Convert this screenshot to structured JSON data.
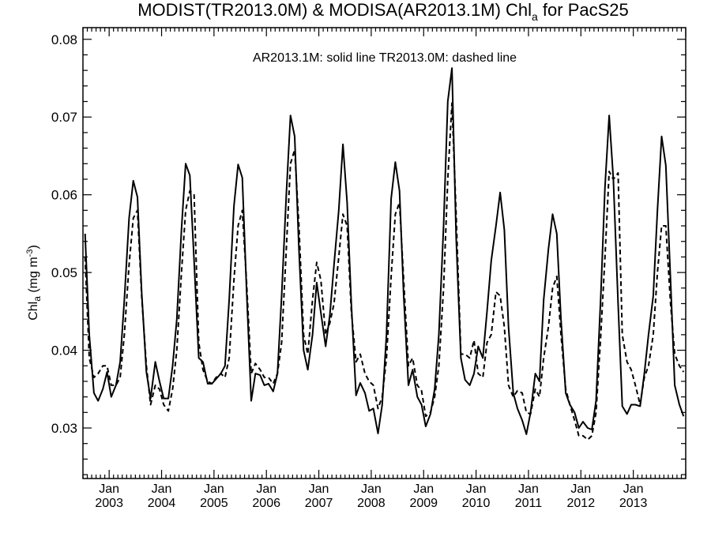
{
  "chart_data": {
    "type": "line",
    "title": {
      "prefix": "MODIST(TR2013.0M) & MODISA(AR2013.1M)  Chl",
      "subscript": "a",
      "suffix": " for PacS25"
    },
    "ylabel": {
      "prefix": "Chl",
      "subscript": "a",
      "units": " (mg m",
      "superscript": "-3",
      "close": ")"
    },
    "annotation": "AR2013.1M: solid line   TR2013.0M: dashed line",
    "xlim": [
      2002.5,
      2014.0
    ],
    "ylim": [
      0.0235,
      0.0815
    ],
    "y_ticks": [
      0.03,
      0.04,
      0.05,
      0.06,
      0.07,
      0.08
    ],
    "y_tick_labels": [
      "0.03",
      "0.04",
      "0.05",
      "0.06",
      "0.07",
      "0.08"
    ],
    "x_ticks": [
      2003,
      2004,
      2005,
      2006,
      2007,
      2008,
      2009,
      2010,
      2011,
      2012,
      2013
    ],
    "x_tick_month": "Jan",
    "x_tick_years": [
      "2003",
      "2004",
      "2005",
      "2006",
      "2007",
      "2008",
      "2009",
      "2010",
      "2011",
      "2012",
      "2013"
    ],
    "grid": false,
    "series": [
      {
        "style": "solid",
        "x": [
          2002.54,
          2002.62,
          2002.71,
          2002.79,
          2002.88,
          2002.96,
          2003.04,
          2003.13,
          2003.21,
          2003.29,
          2003.38,
          2003.46,
          2003.54,
          2003.62,
          2003.71,
          2003.79,
          2003.88,
          2003.96,
          2004.04,
          2004.13,
          2004.21,
          2004.29,
          2004.38,
          2004.46,
          2004.54,
          2004.62,
          2004.71,
          2004.79,
          2004.88,
          2004.96,
          2005.04,
          2005.13,
          2005.21,
          2005.29,
          2005.38,
          2005.46,
          2005.54,
          2005.62,
          2005.71,
          2005.79,
          2005.88,
          2005.96,
          2006.04,
          2006.13,
          2006.21,
          2006.29,
          2006.38,
          2006.46,
          2006.54,
          2006.62,
          2006.71,
          2006.79,
          2006.88,
          2006.96,
          2007.04,
          2007.13,
          2007.21,
          2007.29,
          2007.38,
          2007.46,
          2007.54,
          2007.62,
          2007.71,
          2007.79,
          2007.88,
          2007.96,
          2008.04,
          2008.13,
          2008.21,
          2008.29,
          2008.38,
          2008.46,
          2008.54,
          2008.62,
          2008.71,
          2008.79,
          2008.88,
          2008.96,
          2009.04,
          2009.13,
          2009.21,
          2009.29,
          2009.38,
          2009.46,
          2009.54,
          2009.62,
          2009.71,
          2009.79,
          2009.88,
          2009.96,
          2010.04,
          2010.13,
          2010.21,
          2010.29,
          2010.38,
          2010.46,
          2010.54,
          2010.62,
          2010.71,
          2010.79,
          2010.88,
          2010.96,
          2011.04,
          2011.13,
          2011.21,
          2011.29,
          2011.38,
          2011.46,
          2011.54,
          2011.62,
          2011.71,
          2011.79,
          2011.88,
          2011.96,
          2012.04,
          2012.13,
          2012.21,
          2012.29,
          2012.38,
          2012.46,
          2012.54,
          2012.62,
          2012.71,
          2012.79,
          2012.88,
          2012.96,
          2013.04,
          2013.13,
          2013.21,
          2013.29,
          2013.38,
          2013.46,
          2013.54,
          2013.62,
          2013.71,
          2013.79,
          2013.88,
          2013.96
        ],
        "y": [
          0.055,
          0.042,
          0.0345,
          0.0335,
          0.035,
          0.0372,
          0.034,
          0.0355,
          0.0385,
          0.0465,
          0.057,
          0.0618,
          0.0597,
          0.0475,
          0.0372,
          0.0338,
          0.0385,
          0.036,
          0.0338,
          0.0338,
          0.038,
          0.044,
          0.0555,
          0.064,
          0.0625,
          0.0515,
          0.039,
          0.0385,
          0.0357,
          0.0357,
          0.0363,
          0.037,
          0.038,
          0.0465,
          0.0585,
          0.0639,
          0.0622,
          0.048,
          0.0335,
          0.037,
          0.0368,
          0.0355,
          0.0357,
          0.0347,
          0.037,
          0.047,
          0.06,
          0.0702,
          0.0675,
          0.053,
          0.04,
          0.0375,
          0.042,
          0.0487,
          0.0448,
          0.0405,
          0.0445,
          0.051,
          0.058,
          0.0665,
          0.059,
          0.046,
          0.0342,
          0.0358,
          0.0345,
          0.0322,
          0.0325,
          0.0293,
          0.033,
          0.042,
          0.0595,
          0.0642,
          0.0605,
          0.047,
          0.0355,
          0.0375,
          0.034,
          0.033,
          0.0302,
          0.0318,
          0.035,
          0.042,
          0.056,
          0.072,
          0.0763,
          0.0545,
          0.039,
          0.0362,
          0.0355,
          0.037,
          0.0405,
          0.039,
          0.045,
          0.0515,
          0.056,
          0.0603,
          0.0555,
          0.043,
          0.0345,
          0.0325,
          0.031,
          0.0292,
          0.032,
          0.037,
          0.036,
          0.0465,
          0.053,
          0.0575,
          0.055,
          0.044,
          0.0345,
          0.033,
          0.032,
          0.03,
          0.0308,
          0.03,
          0.0298,
          0.0335,
          0.047,
          0.061,
          0.0702,
          0.062,
          0.046,
          0.0328,
          0.0318,
          0.033,
          0.033,
          0.0328,
          0.037,
          0.042,
          0.047,
          0.058,
          0.0675,
          0.0638,
          0.049,
          0.0355,
          0.033,
          0.0315
        ]
      },
      {
        "style": "dashed",
        "x": [
          2002.54,
          2002.62,
          2002.71,
          2002.79,
          2002.88,
          2002.96,
          2003.04,
          2003.13,
          2003.21,
          2003.29,
          2003.38,
          2003.46,
          2003.54,
          2003.62,
          2003.71,
          2003.79,
          2003.88,
          2003.96,
          2004.04,
          2004.13,
          2004.21,
          2004.29,
          2004.38,
          2004.46,
          2004.54,
          2004.62,
          2004.71,
          2004.79,
          2004.88,
          2004.96,
          2005.04,
          2005.13,
          2005.21,
          2005.29,
          2005.38,
          2005.46,
          2005.54,
          2005.62,
          2005.71,
          2005.79,
          2005.88,
          2005.96,
          2006.04,
          2006.13,
          2006.21,
          2006.29,
          2006.38,
          2006.46,
          2006.54,
          2006.62,
          2006.71,
          2006.79,
          2006.88,
          2006.96,
          2007.04,
          2007.13,
          2007.21,
          2007.29,
          2007.38,
          2007.46,
          2007.54,
          2007.62,
          2007.71,
          2007.79,
          2007.88,
          2007.96,
          2008.04,
          2008.13,
          2008.21,
          2008.29,
          2008.38,
          2008.46,
          2008.54,
          2008.62,
          2008.71,
          2008.79,
          2008.88,
          2008.96,
          2009.04,
          2009.13,
          2009.21,
          2009.29,
          2009.38,
          2009.46,
          2009.54,
          2009.62,
          2009.71,
          2009.79,
          2009.88,
          2009.96,
          2010.04,
          2010.13,
          2010.21,
          2010.29,
          2010.38,
          2010.46,
          2010.54,
          2010.62,
          2010.71,
          2010.79,
          2010.88,
          2010.96,
          2011.04,
          2011.13,
          2011.21,
          2011.29,
          2011.38,
          2011.46,
          2011.54,
          2011.62,
          2011.71,
          2011.79,
          2011.88,
          2011.96,
          2012.04,
          2012.13,
          2012.21,
          2012.29,
          2012.38,
          2012.46,
          2012.54,
          2012.62,
          2012.71,
          2012.79,
          2012.88,
          2012.96,
          2013.04,
          2013.13,
          2013.21,
          2013.29,
          2013.38,
          2013.46,
          2013.54,
          2013.62,
          2013.71,
          2013.79,
          2013.88,
          2013.96
        ],
        "y": [
          0.052,
          0.039,
          0.0365,
          0.037,
          0.038,
          0.038,
          0.0355,
          0.0355,
          0.0365,
          0.042,
          0.051,
          0.057,
          0.058,
          0.047,
          0.038,
          0.033,
          0.0355,
          0.035,
          0.033,
          0.0322,
          0.035,
          0.04,
          0.05,
          0.058,
          0.0605,
          0.06,
          0.041,
          0.0375,
          0.036,
          0.0357,
          0.0365,
          0.037,
          0.0365,
          0.039,
          0.049,
          0.056,
          0.058,
          0.049,
          0.037,
          0.0383,
          0.0375,
          0.0365,
          0.0365,
          0.0357,
          0.037,
          0.041,
          0.053,
          0.064,
          0.0658,
          0.056,
          0.042,
          0.0395,
          0.0465,
          0.0513,
          0.049,
          0.042,
          0.0435,
          0.046,
          0.052,
          0.0575,
          0.056,
          0.045,
          0.0385,
          0.0395,
          0.037,
          0.036,
          0.0355,
          0.0325,
          0.034,
          0.039,
          0.0495,
          0.0575,
          0.059,
          0.049,
          0.038,
          0.039,
          0.0355,
          0.0348,
          0.0315,
          0.032,
          0.034,
          0.038,
          0.048,
          0.062,
          0.0718,
          0.0575,
          0.0395,
          0.0395,
          0.039,
          0.0413,
          0.037,
          0.0365,
          0.041,
          0.042,
          0.0475,
          0.047,
          0.043,
          0.0355,
          0.034,
          0.0348,
          0.0345,
          0.032,
          0.0318,
          0.035,
          0.034,
          0.039,
          0.043,
          0.048,
          0.0495,
          0.042,
          0.035,
          0.033,
          0.031,
          0.029,
          0.029,
          0.0285,
          0.029,
          0.032,
          0.042,
          0.052,
          0.063,
          0.062,
          0.0628,
          0.042,
          0.0385,
          0.0375,
          0.0355,
          0.033,
          0.0365,
          0.038,
          0.042,
          0.05,
          0.056,
          0.056,
          0.046,
          0.0395,
          0.038,
          0.0372
        ]
      }
    ]
  }
}
